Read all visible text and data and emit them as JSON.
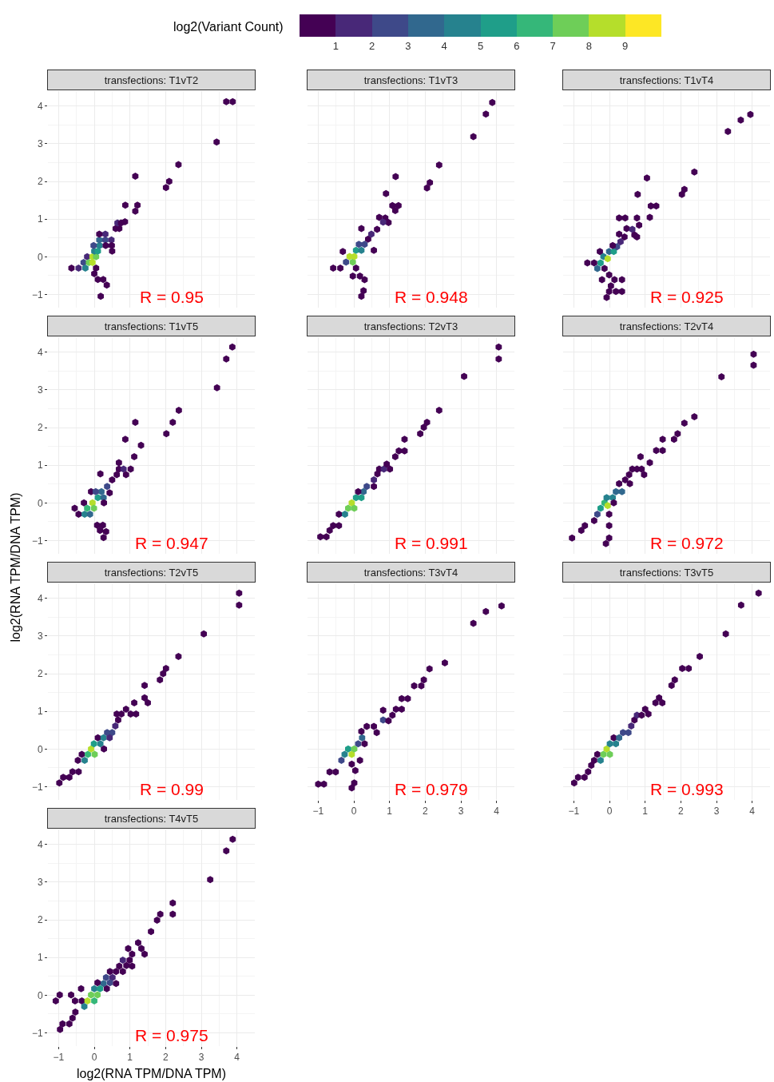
{
  "chart_data": [
    {
      "type": "scatter",
      "title": "transfections: T1vT2",
      "clabel": "log2(Variant Count)",
      "clim": [
        0,
        10
      ],
      "cticks": [
        1,
        2,
        3,
        4,
        5,
        6,
        7,
        8,
        9
      ],
      "xlim": [
        -1.3,
        4.5
      ],
      "ylim": [
        -1.35,
        4.4
      ],
      "xticks": [
        -1,
        0,
        1,
        2,
        3,
        4
      ],
      "yticks": [
        -1,
        0,
        1,
        2,
        3,
        4
      ],
      "grid": true,
      "tick_labels": "y",
      "annotations": [
        "R = 0.95"
      ],
      "x": [
        -0.64,
        -0.44,
        -0.3,
        -0.25,
        -0.2,
        -0.15,
        -0.05,
        -0.05,
        0.05,
        0.0,
        0.1,
        0.15,
        -0.02,
        0.14,
        0.31,
        0.31,
        0.48,
        0.49,
        0.32,
        0.5,
        0.14,
        0.05,
        0.0,
        0.1,
        0.25,
        0.35,
        0.18,
        0.6,
        0.7,
        0.65,
        0.75,
        0.86,
        0.87,
        1.21,
        1.15,
        1.15,
        2.01,
        2.1,
        2.36,
        3.43,
        3.7,
        3.88
      ],
      "values": [
        -0.3,
        -0.3,
        -0.15,
        -0.3,
        0.0,
        -0.15,
        -0.15,
        0.0,
        0.0,
        0.15,
        0.15,
        0.3,
        0.3,
        0.45,
        0.45,
        0.6,
        0.45,
        0.3,
        0.3,
        0.15,
        0.6,
        -0.3,
        -0.45,
        -0.6,
        -0.6,
        -0.75,
        -1.05,
        0.75,
        0.75,
        0.9,
        0.9,
        0.93,
        1.37,
        1.37,
        1.21,
        2.14,
        1.84,
        2.0,
        2.45,
        3.05,
        4.12,
        4.12
      ],
      "colors": [
        "#440154",
        "#482878",
        "#3e4989",
        "#26828e",
        "#482878",
        "#6ece58",
        "#b5de2b",
        "#b5de2b",
        "#6ece58",
        "#26828e",
        "#1f9e89",
        "#26828e",
        "#3e4989",
        "#31688e",
        "#3e4989",
        "#482878",
        "#482878",
        "#440154",
        "#440154",
        "#440154",
        "#440154",
        "#440154",
        "#440154",
        "#440154",
        "#440154",
        "#440154",
        "#440154",
        "#440154",
        "#440154",
        "#482878",
        "#440154",
        "#440154",
        "#440154",
        "#440154",
        "#440154",
        "#440154",
        "#440154",
        "#440154",
        "#440154",
        "#440154",
        "#440154",
        "#440154"
      ]
    },
    {
      "type": "scatter",
      "title": "transfections: T1vT3",
      "xlim": [
        -1.3,
        4.5
      ],
      "ylim": [
        -1.35,
        4.4
      ],
      "xticks": [
        -1,
        0,
        1,
        2,
        3,
        4
      ],
      "yticks": [
        -1,
        0,
        1,
        2,
        3,
        4
      ],
      "grid": true,
      "tick_labels": false,
      "annotations": [
        "R = 0.948"
      ],
      "x": [
        -0.58,
        -0.38,
        -0.31,
        -0.22,
        -0.12,
        -0.03,
        0.01,
        0.06,
        0.21,
        0.3,
        0.14,
        0.4,
        0.56,
        0.21,
        0.49,
        0.65,
        0.71,
        0.88,
        0.97,
        0.82,
        0.06,
        -0.03,
        0.17,
        0.3,
        0.27,
        0.21,
        0.9,
        1.08,
        1.25,
        1.16,
        1.17,
        2.05,
        2.13,
        2.39,
        3.35,
        3.7,
        3.88
      ],
      "values": [
        -0.3,
        -0.3,
        0.14,
        -0.14,
        0.01,
        -0.14,
        0.01,
        0.17,
        0.17,
        0.33,
        0.33,
        0.47,
        0.17,
        0.75,
        0.6,
        0.73,
        1.05,
        1.03,
        0.91,
        0.92,
        -0.3,
        -0.51,
        -0.51,
        -0.61,
        -0.9,
        -1.05,
        1.68,
        1.36,
        1.36,
        1.23,
        2.13,
        1.83,
        1.97,
        2.44,
        3.19,
        3.79,
        4.1
      ],
      "colors": [
        "#440154",
        "#440154",
        "#440154",
        "#3e4989",
        "#b5de2b",
        "#6ece58",
        "#b5de2b",
        "#1f9e89",
        "#26828e",
        "#3e4989",
        "#3e4989",
        "#440154",
        "#440154",
        "#440154",
        "#482878",
        "#440154",
        "#440154",
        "#440154",
        "#440154",
        "#482878",
        "#440154",
        "#440154",
        "#440154",
        "#440154",
        "#440154",
        "#440154",
        "#440154",
        "#440154",
        "#440154",
        "#440154",
        "#440154",
        "#440154",
        "#440154",
        "#440154",
        "#440154",
        "#440154",
        "#440154"
      ]
    },
    {
      "type": "scatter",
      "title": "transfections: T1vT4",
      "xlim": [
        -1.3,
        4.5
      ],
      "ylim": [
        -1.35,
        4.4
      ],
      "xticks": [
        -1,
        0,
        1,
        2,
        3,
        4
      ],
      "yticks": [
        -1,
        0,
        1,
        2,
        3,
        4
      ],
      "grid": true,
      "tick_labels": false,
      "annotations": [
        "R = 0.925"
      ],
      "x": [
        -0.62,
        -0.43,
        -0.34,
        -0.25,
        -0.17,
        -0.05,
        -0.01,
        0.12,
        0.21,
        0.31,
        0.42,
        0.09,
        -0.27,
        0.27,
        0.48,
        0.64,
        0.77,
        0.27,
        0.44,
        0.7,
        0.83,
        0.77,
        -0.14,
        -0.01,
        -0.21,
        0.14,
        0.35,
        0.04,
        0.18,
        -0.01,
        0.35,
        -0.08,
        0.79,
        1.16,
        1.31,
        1.13,
        1.05,
        2.03,
        2.1,
        2.38,
        3.32,
        3.68,
        3.95
      ],
      "values": [
        -0.16,
        -0.16,
        -0.31,
        -0.16,
        0.01,
        -0.05,
        0.14,
        0.14,
        0.27,
        0.4,
        0.53,
        0.3,
        0.14,
        0.6,
        0.75,
        0.73,
        1.03,
        1.03,
        1.03,
        0.58,
        0.84,
        0.53,
        -0.31,
        -0.48,
        -0.61,
        -0.61,
        -0.61,
        -0.77,
        -0.92,
        -0.92,
        -0.92,
        -1.08,
        1.66,
        1.35,
        1.35,
        1.05,
        2.09,
        1.66,
        1.79,
        2.25,
        3.33,
        3.63,
        3.78
      ],
      "colors": [
        "#440154",
        "#440154",
        "#31688e",
        "#1f9e89",
        "#26828e",
        "#b5de2b",
        "#31688e",
        "#1f9e89",
        "#3e4989",
        "#482878",
        "#440154",
        "#440154",
        "#440154",
        "#440154",
        "#440154",
        "#482878",
        "#440154",
        "#440154",
        "#440154",
        "#440154",
        "#440154",
        "#440154",
        "#440154",
        "#440154",
        "#440154",
        "#440154",
        "#440154",
        "#440154",
        "#440154",
        "#440154",
        "#440154",
        "#440154",
        "#440154",
        "#440154",
        "#440154",
        "#440154",
        "#440154",
        "#440154",
        "#440154",
        "#440154",
        "#440154",
        "#440154",
        "#440154"
      ]
    },
    {
      "type": "scatter",
      "title": "transfections: T1vT5",
      "ylabel": "log2(RNA TPM/DNA TPM)",
      "xlim": [
        -1.3,
        4.5
      ],
      "ylim": [
        -1.35,
        4.4
      ],
      "xticks": [
        -1,
        0,
        1,
        2,
        3,
        4
      ],
      "yticks": [
        -1,
        0,
        1,
        2,
        3,
        4
      ],
      "grid": true,
      "tick_labels": "y",
      "annotations": [
        "R = 0.947"
      ],
      "x": [
        -0.55,
        -0.44,
        -0.27,
        -0.12,
        -0.29,
        -0.2,
        -0.05,
        -0.01,
        0.1,
        0.26,
        0.2,
        -0.09,
        0.04,
        0.36,
        0.43,
        0.27,
        0.5,
        0.63,
        0.69,
        0.82,
        0.89,
        1.02,
        0.17,
        0.69,
        1.12,
        1.31,
        0.87,
        1.15,
        2.02,
        2.2,
        2.37,
        3.44,
        3.7,
        3.87,
        0.08,
        0.24,
        0.16,
        0.33,
        0.26
      ],
      "values": [
        -0.14,
        -0.3,
        -0.3,
        -0.3,
        0.0,
        -0.14,
        0.0,
        -0.14,
        0.14,
        0.14,
        0.3,
        0.3,
        0.3,
        0.44,
        0.27,
        0.0,
        0.61,
        0.75,
        0.9,
        0.9,
        0.75,
        0.9,
        0.77,
        1.07,
        1.23,
        1.53,
        1.69,
        2.14,
        1.84,
        2.14,
        2.46,
        3.06,
        3.82,
        4.14,
        -0.59,
        -0.59,
        -0.73,
        -0.76,
        -0.92
      ],
      "colors": [
        "#440154",
        "#440154",
        "#26828e",
        "#31688e",
        "#440154",
        "#35b779",
        "#b5de2b",
        "#6ece58",
        "#1f9e89",
        "#31688e",
        "#31688e",
        "#440154",
        "#3e4989",
        "#3e4989",
        "#440154",
        "#440154",
        "#440154",
        "#440154",
        "#440154",
        "#482878",
        "#440154",
        "#440154",
        "#440154",
        "#440154",
        "#440154",
        "#440154",
        "#440154",
        "#440154",
        "#440154",
        "#440154",
        "#440154",
        "#440154",
        "#440154",
        "#440154",
        "#440154",
        "#440154",
        "#440154",
        "#440154",
        "#440154"
      ]
    },
    {
      "type": "scatter",
      "title": "transfections: T2vT3",
      "xlim": [
        -1.3,
        4.5
      ],
      "ylim": [
        -1.35,
        4.4
      ],
      "xticks": [
        -1,
        0,
        1,
        2,
        3,
        4
      ],
      "yticks": [
        -1,
        0,
        1,
        2,
        3,
        4
      ],
      "grid": true,
      "tick_labels": false,
      "annotations": [
        "R = 0.991"
      ],
      "x": [
        -0.94,
        -0.77,
        -0.68,
        -0.58,
        -0.42,
        -0.42,
        -0.25,
        -0.16,
        -0.06,
        0.01,
        0.06,
        0.21,
        0.36,
        0.27,
        0.12,
        0.56,
        0.56,
        0.66,
        0.71,
        0.84,
        0.92,
        1.01,
        1.16,
        1.26,
        1.42,
        1.42,
        1.86,
        2.05,
        1.96,
        2.39,
        3.09,
        4.06,
        4.06
      ],
      "values": [
        -0.9,
        -0.9,
        -0.73,
        -0.6,
        -0.6,
        -0.3,
        -0.3,
        -0.14,
        0.0,
        -0.14,
        0.14,
        0.14,
        0.44,
        0.3,
        0.3,
        0.44,
        0.61,
        0.77,
        0.9,
        0.9,
        1.03,
        0.9,
        1.23,
        1.38,
        1.38,
        1.69,
        1.84,
        2.14,
        2.01,
        2.46,
        3.36,
        3.82,
        4.14
      ],
      "colors": [
        "#440154",
        "#440154",
        "#440154",
        "#440154",
        "#440154",
        "#440154",
        "#26828e",
        "#6ece58",
        "#b5de2b",
        "#6ece58",
        "#1f9e89",
        "#1f9e89",
        "#3e4989",
        "#31688e",
        "#440154",
        "#440154",
        "#482878",
        "#440154",
        "#440154",
        "#482878",
        "#440154",
        "#440154",
        "#440154",
        "#440154",
        "#440154",
        "#440154",
        "#440154",
        "#440154",
        "#440154",
        "#440154",
        "#440154",
        "#440154",
        "#440154"
      ]
    },
    {
      "type": "scatter",
      "title": "transfections: T2vT4",
      "xlim": [
        -1.3,
        4.5
      ],
      "ylim": [
        -1.35,
        4.4
      ],
      "xticks": [
        -1,
        0,
        1,
        2,
        3,
        4
      ],
      "yticks": [
        -1,
        0,
        1,
        2,
        3,
        4
      ],
      "grid": true,
      "tick_labels": false,
      "annotations": [
        "R = 0.972"
      ],
      "x": [
        -1.05,
        -0.79,
        -0.69,
        -0.43,
        -0.34,
        -0.25,
        -0.14,
        -0.05,
        -0.08,
        0.09,
        0.18,
        0.35,
        0.27,
        0.44,
        0.57,
        0.55,
        0.12,
        -0.01,
        -0.01,
        -0.01,
        -0.1,
        0.64,
        0.77,
        0.9,
        0.97,
        1.13,
        0.87,
        1.31,
        1.49,
        1.49,
        1.81,
        1.91,
        2.1,
        2.38,
        3.14,
        4.04,
        4.04
      ],
      "values": [
        -0.93,
        -0.73,
        -0.6,
        -0.47,
        -0.3,
        -0.14,
        0.0,
        -0.07,
        0.14,
        0.14,
        0.3,
        0.3,
        0.51,
        0.61,
        0.51,
        0.75,
        0.0,
        -0.3,
        -0.6,
        -0.93,
        -1.08,
        0.9,
        0.9,
        0.9,
        0.75,
        1.07,
        1.23,
        1.39,
        1.39,
        1.69,
        1.69,
        1.84,
        2.12,
        2.29,
        3.35,
        3.95,
        3.66
      ],
      "colors": [
        "#440154",
        "#440154",
        "#440154",
        "#440154",
        "#3e4989",
        "#1f9e89",
        "#35b779",
        "#b5de2b",
        "#26828e",
        "#26828e",
        "#31688e",
        "#31688e",
        "#440154",
        "#440154",
        "#440154",
        "#440154",
        "#440154",
        "#440154",
        "#440154",
        "#440154",
        "#440154",
        "#440154",
        "#440154",
        "#440154",
        "#440154",
        "#440154",
        "#440154",
        "#440154",
        "#440154",
        "#440154",
        "#440154",
        "#440154",
        "#440154",
        "#440154",
        "#440154",
        "#440154",
        "#440154"
      ]
    },
    {
      "type": "scatter",
      "title": "transfections: T2vT5",
      "xlim": [
        -1.3,
        4.5
      ],
      "ylim": [
        -1.35,
        4.4
      ],
      "xticks": [
        -1,
        0,
        1,
        2,
        3,
        4
      ],
      "yticks": [
        -1,
        0,
        1,
        2,
        3,
        4
      ],
      "grid": true,
      "tick_labels": "y",
      "annotations": [
        "R = 0.99"
      ],
      "x": [
        -0.98,
        -0.87,
        -0.7,
        -0.61,
        -0.44,
        -0.46,
        -0.35,
        -0.27,
        -0.18,
        -0.09,
        0.01,
        -0.01,
        0.1,
        0.17,
        0.26,
        0.36,
        0.5,
        0.43,
        0.27,
        0.59,
        0.67,
        0.63,
        0.76,
        0.89,
        1.02,
        1.17,
        1.12,
        1.41,
        1.5,
        1.41,
        1.84,
        1.93,
        2.01,
        2.36,
        3.07,
        4.06,
        4.06
      ],
      "values": [
        -0.9,
        -0.75,
        -0.75,
        -0.6,
        -0.6,
        -0.3,
        -0.14,
        -0.3,
        -0.14,
        0.0,
        -0.14,
        0.14,
        0.3,
        0.14,
        0.3,
        0.44,
        0.44,
        0.3,
        0.0,
        0.61,
        0.77,
        0.93,
        0.93,
        1.06,
        0.93,
        0.93,
        1.23,
        1.36,
        1.23,
        1.69,
        1.84,
        2.0,
        2.14,
        2.46,
        3.06,
        3.82,
        4.14
      ],
      "colors": [
        "#440154",
        "#440154",
        "#440154",
        "#440154",
        "#440154",
        "#440154",
        "#440154",
        "#26828e",
        "#35b779",
        "#b5de2b",
        "#6ece58",
        "#1f9e89",
        "#440154",
        "#26828e",
        "#26828e",
        "#3e4989",
        "#3e4989",
        "#482878",
        "#440154",
        "#482878",
        "#440154",
        "#440154",
        "#440154",
        "#440154",
        "#440154",
        "#440154",
        "#440154",
        "#440154",
        "#440154",
        "#440154",
        "#440154",
        "#440154",
        "#440154",
        "#440154",
        "#440154",
        "#440154",
        "#440154"
      ]
    },
    {
      "type": "scatter",
      "title": "transfections: T3vT4",
      "xlim": [
        -1.3,
        4.5
      ],
      "ylim": [
        -1.35,
        4.4
      ],
      "xticks": [
        -1,
        0,
        1,
        2,
        3,
        4
      ],
      "yticks": [
        -1,
        0,
        1,
        2,
        3,
        4
      ],
      "grid": true,
      "tick_labels": "x",
      "annotations": [
        "R = 0.979"
      ],
      "x": [
        -1.0,
        -0.84,
        -0.68,
        -0.51,
        -0.35,
        -0.26,
        -0.16,
        -0.06,
        0.01,
        0.12,
        0.23,
        0.3,
        0.17,
        -0.06,
        0.04,
        0.01,
        -0.06,
        0.21,
        0.36,
        0.56,
        0.64,
        0.82,
        0.82,
        0.97,
        1.08,
        1.18,
        1.34,
        1.34,
        1.51,
        1.69,
        1.89,
        1.96,
        2.12,
        2.55,
        3.35,
        3.7,
        4.14
      ],
      "values": [
        -0.93,
        -0.93,
        -0.61,
        -0.61,
        -0.3,
        -0.14,
        0.0,
        -0.14,
        0.0,
        0.14,
        0.3,
        0.14,
        -0.3,
        -0.4,
        -0.57,
        -0.9,
        -1.03,
        0.47,
        0.6,
        0.6,
        0.44,
        0.77,
        1.03,
        0.75,
        0.9,
        1.06,
        1.06,
        1.34,
        1.34,
        1.68,
        1.68,
        1.84,
        2.13,
        2.29,
        3.34,
        3.65,
        3.8
      ],
      "colors": [
        "#440154",
        "#440154",
        "#440154",
        "#440154",
        "#3e4989",
        "#26828e",
        "#1f9e89",
        "#b5de2b",
        "#6ece58",
        "#3e4989",
        "#31688e",
        "#440154",
        "#440154",
        "#440154",
        "#440154",
        "#440154",
        "#440154",
        "#440154",
        "#440154",
        "#440154",
        "#440154",
        "#3e4989",
        "#440154",
        "#440154",
        "#440154",
        "#440154",
        "#440154",
        "#440154",
        "#440154",
        "#440154",
        "#440154",
        "#440154",
        "#440154",
        "#440154",
        "#440154",
        "#440154",
        "#440154"
      ]
    },
    {
      "type": "scatter",
      "title": "transfections: T3vT5",
      "xlim": [
        -1.3,
        4.5
      ],
      "ylim": [
        -1.35,
        4.4
      ],
      "xticks": [
        -1,
        0,
        1,
        2,
        3,
        4
      ],
      "yticks": [
        -1,
        0,
        1,
        2,
        3,
        4
      ],
      "grid": true,
      "tick_labels": "x",
      "annotations": [
        "R = 0.993"
      ],
      "x": [
        -0.99,
        -0.88,
        -0.7,
        -0.6,
        -0.51,
        -0.43,
        -0.34,
        -0.25,
        -0.17,
        -0.08,
        0.01,
        0.01,
        0.12,
        0.18,
        0.27,
        0.38,
        0.53,
        0.61,
        0.7,
        0.77,
        0.9,
        1.0,
        1.09,
        1.29,
        1.39,
        1.48,
        1.74,
        1.83,
        2.04,
        2.22,
        2.53,
        3.26,
        3.69,
        4.18
      ],
      "values": [
        -0.9,
        -0.75,
        -0.75,
        -0.6,
        -0.43,
        -0.3,
        -0.14,
        -0.3,
        -0.14,
        0.0,
        -0.14,
        0.14,
        0.3,
        0.14,
        0.3,
        0.44,
        0.44,
        0.61,
        0.77,
        0.9,
        0.9,
        1.06,
        0.93,
        1.23,
        1.36,
        1.23,
        1.69,
        1.84,
        2.14,
        2.14,
        2.46,
        3.06,
        3.82,
        4.14
      ],
      "colors": [
        "#440154",
        "#440154",
        "#440154",
        "#440154",
        "#440154",
        "#440154",
        "#440154",
        "#26828e",
        "#6ece58",
        "#b5de2b",
        "#6ece58",
        "#26828e",
        "#440154",
        "#26828e",
        "#31688e",
        "#3e4989",
        "#3e4989",
        "#482878",
        "#440154",
        "#482878",
        "#440154",
        "#440154",
        "#440154",
        "#440154",
        "#440154",
        "#440154",
        "#440154",
        "#440154",
        "#440154",
        "#440154",
        "#440154",
        "#440154",
        "#440154",
        "#440154"
      ]
    },
    {
      "type": "scatter",
      "title": "transfections: T4vT5",
      "xlabel": "log2(RNA TPM/DNA TPM)",
      "xlim": [
        -1.3,
        4.5
      ],
      "ylim": [
        -1.35,
        4.4
      ],
      "xticks": [
        -1,
        0,
        1,
        2,
        3,
        4
      ],
      "yticks": [
        -1,
        0,
        1,
        2,
        3,
        4
      ],
      "grid": true,
      "annotations": [
        "R = 0.975"
      ],
      "x": [
        -1.08,
        -0.97,
        -0.65,
        -0.54,
        -0.37,
        -0.35,
        -0.28,
        -0.19,
        -0.09,
        0.0,
        0.09,
        0.0,
        0.16,
        0.26,
        0.33,
        0.51,
        0.44,
        0.35,
        0.09,
        0.44,
        0.61,
        0.61,
        0.7,
        0.8,
        0.8,
        0.9,
        0.99,
        1.06,
        1.06,
        0.95,
        1.23,
        1.32,
        1.41,
        1.59,
        1.76,
        1.85,
        2.2,
        2.2,
        -0.53,
        -0.61,
        -0.7,
        -0.89,
        -0.96,
        3.25,
        3.7,
        3.88
      ],
      "values": [
        -0.15,
        0.01,
        0.01,
        -0.15,
        0.17,
        -0.15,
        -0.3,
        -0.15,
        0.01,
        -0.15,
        0.01,
        0.17,
        0.17,
        0.31,
        0.47,
        0.47,
        0.33,
        0.17,
        0.33,
        0.63,
        0.31,
        0.63,
        0.77,
        0.63,
        0.93,
        0.79,
        0.93,
        0.77,
        1.09,
        1.24,
        1.39,
        1.24,
        1.09,
        1.69,
        1.99,
        2.15,
        2.15,
        2.45,
        -0.45,
        -0.61,
        -0.76,
        -0.76,
        -0.91,
        3.07,
        3.83,
        4.14
      ],
      "colors": [
        "#440154",
        "#440154",
        "#440154",
        "#440154",
        "#440154",
        "#440154",
        "#26828e",
        "#b5de2b",
        "#6ece58",
        "#35b779",
        "#6ece58",
        "#26828e",
        "#1f9e89",
        "#31688e",
        "#3e4989",
        "#482878",
        "#3e4989",
        "#440154",
        "#440154",
        "#440154",
        "#440154",
        "#440154",
        "#440154",
        "#440154",
        "#482878",
        "#440154",
        "#440154",
        "#440154",
        "#440154",
        "#440154",
        "#440154",
        "#440154",
        "#440154",
        "#440154",
        "#440154",
        "#440154",
        "#440154",
        "#440154",
        "#440154",
        "#440154",
        "#440154",
        "#440154",
        "#440154",
        "#440154",
        "#440154",
        "#440154"
      ]
    }
  ]
}
